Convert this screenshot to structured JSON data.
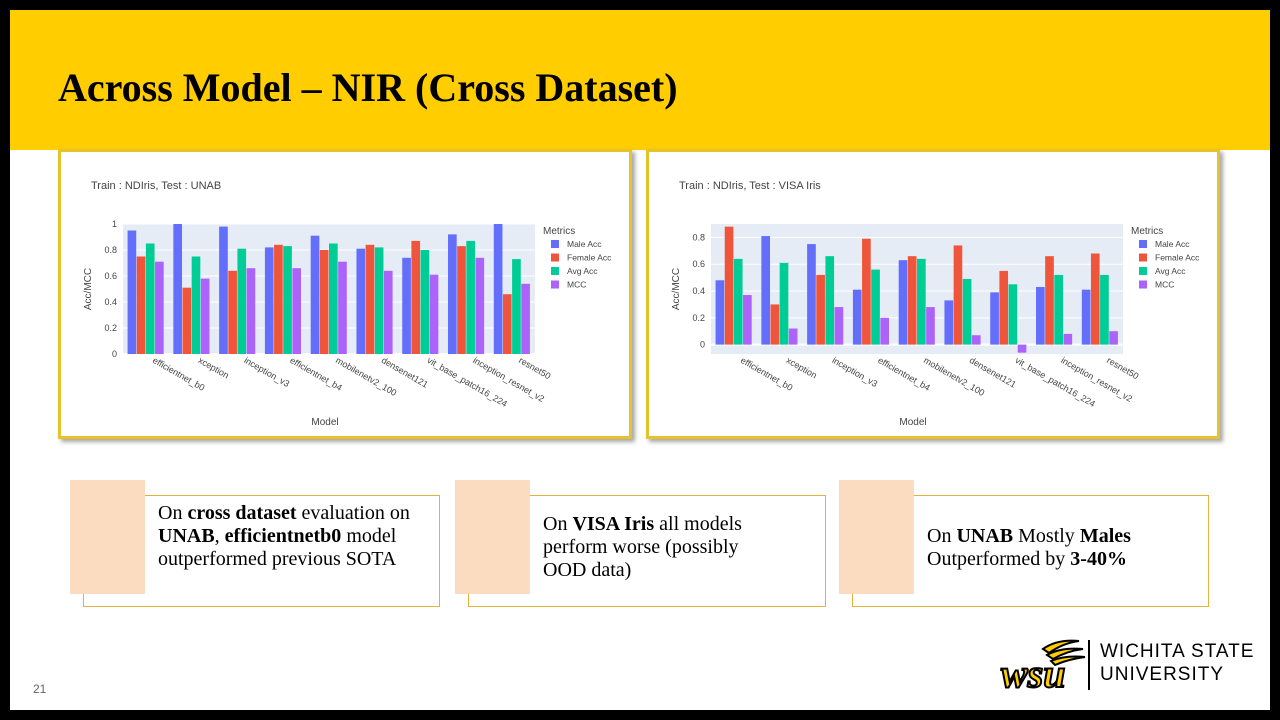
{
  "slide": {
    "title": "Across Model – NIR (Cross Dataset)",
    "slide_number": "21",
    "university": [
      "Wichita State",
      "University"
    ],
    "logo_text": "wsu"
  },
  "callouts": [
    {
      "parts": [
        {
          "t": "On "
        },
        {
          "t": "cross dataset",
          "b": true
        },
        {
          "t": " evaluation on "
        },
        {
          "t": "UNAB",
          "b": true
        },
        {
          "t": ", "
        },
        {
          "t": "efficientnetb0",
          "b": true
        },
        {
          "t": " model outperformed previous SOTA"
        }
      ]
    },
    {
      "parts": [
        {
          "t": "On "
        },
        {
          "t": "VISA Iris",
          "b": true
        },
        {
          "t": " all models perform worse (possibly OOD data)"
        }
      ]
    },
    {
      "parts": [
        {
          "t": "On "
        },
        {
          "t": "UNAB",
          "b": true
        },
        {
          "t": " Mostly "
        },
        {
          "t": "Males",
          "b": true
        },
        {
          "t": " Outperformed by "
        },
        {
          "t": "3-40%",
          "b": true
        }
      ]
    }
  ],
  "chart_data": [
    {
      "type": "bar",
      "title": "Train : NDIris, Test : UNAB",
      "xlabel": "Model",
      "ylabel": "Acc/MCC",
      "ylim": [
        0,
        1.0
      ],
      "yticks": [
        0,
        0.2,
        0.4,
        0.6,
        0.8,
        1
      ],
      "yticklabels": [
        "0",
        "0.2",
        "0.4",
        "0.6",
        "0.8",
        "1"
      ],
      "legend_title": "Metrics",
      "legend_position": "right",
      "categories": [
        "efficientnet_b0",
        "xception",
        "inception_v3",
        "efficientnet_b4",
        "mobilenetv2_100",
        "densenet121",
        "vit_base_patch16_224",
        "inception_resnet_v2",
        "resnet50"
      ],
      "series": [
        {
          "name": "Male Acc",
          "color": "#636EFA",
          "values": [
            0.95,
            1.0,
            0.98,
            0.82,
            0.91,
            0.81,
            0.74,
            0.92,
            1.0
          ]
        },
        {
          "name": "Female Acc",
          "color": "#EF553B",
          "values": [
            0.75,
            0.51,
            0.64,
            0.84,
            0.8,
            0.84,
            0.87,
            0.83,
            0.46
          ]
        },
        {
          "name": "Avg Acc",
          "color": "#00CC96",
          "values": [
            0.85,
            0.75,
            0.81,
            0.83,
            0.85,
            0.82,
            0.8,
            0.87,
            0.73
          ]
        },
        {
          "name": "MCC",
          "color": "#AB63FA",
          "values": [
            0.71,
            0.58,
            0.66,
            0.66,
            0.71,
            0.64,
            0.61,
            0.74,
            0.54
          ]
        }
      ]
    },
    {
      "type": "bar",
      "title": "Train : NDIris, Test : VISA Iris",
      "xlabel": "Model",
      "ylabel": "Acc/MCC",
      "ylim": [
        -0.07,
        0.9
      ],
      "yticks": [
        0,
        0.2,
        0.4,
        0.6,
        0.8
      ],
      "yticklabels": [
        "0",
        "0.2",
        "0.4",
        "0.6",
        "0.8"
      ],
      "legend_title": "Metrics",
      "legend_position": "right",
      "categories": [
        "efficientnet_b0",
        "xception",
        "inception_v3",
        "efficientnet_b4",
        "mobilenetv2_100",
        "densenet121",
        "vit_base_patch16_224",
        "inception_resnet_v2",
        "resnet50"
      ],
      "series": [
        {
          "name": "Male Acc",
          "color": "#636EFA",
          "values": [
            0.48,
            0.81,
            0.75,
            0.41,
            0.63,
            0.33,
            0.39,
            0.43,
            0.41
          ]
        },
        {
          "name": "Female Acc",
          "color": "#EF553B",
          "values": [
            0.88,
            0.3,
            0.52,
            0.79,
            0.66,
            0.74,
            0.55,
            0.66,
            0.68
          ]
        },
        {
          "name": "Avg Acc",
          "color": "#00CC96",
          "values": [
            0.64,
            0.61,
            0.66,
            0.56,
            0.64,
            0.49,
            0.45,
            0.52,
            0.52
          ]
        },
        {
          "name": "MCC",
          "color": "#AB63FA",
          "values": [
            0.37,
            0.12,
            0.28,
            0.2,
            0.28,
            0.07,
            -0.06,
            0.08,
            0.1
          ]
        }
      ]
    }
  ]
}
